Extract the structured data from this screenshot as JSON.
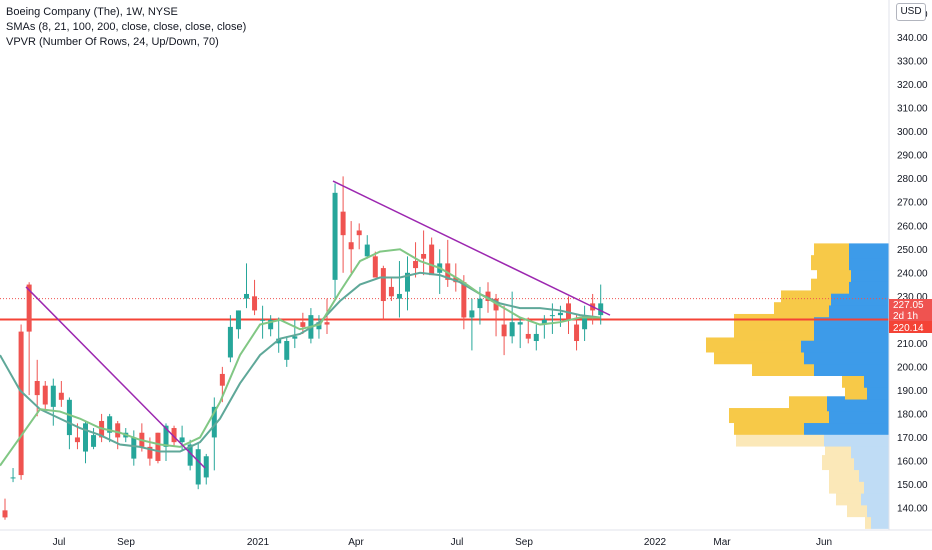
{
  "legend": {
    "title": "Boeing Company (The), 1W, NYSE",
    "sma": "SMAs (8, 21, 100, 200, close, close, close, close)",
    "vpvr": "VPVR (Number Of Rows, 24, Up/Down, 70)"
  },
  "currency": "USD",
  "price_tags": {
    "last": "227.05",
    "countdown": "2d 1h",
    "level": "220.14"
  },
  "colors": {
    "up": "#26a69a",
    "down": "#ef5350",
    "sma_short": "#81c784",
    "sma_mid": "#5fa899",
    "trendline": "#9c27b0",
    "hline": "#f44336",
    "vp_up": "#3d9be9",
    "vp_down": "#f7c948",
    "vp_up_light": "#bfdcf5",
    "vp_down_light": "#fbe8b8"
  },
  "chart_data": {
    "type": "candlestick",
    "y_axis": {
      "ticks": [
        "140.00",
        "150.00",
        "160.00",
        "170.00",
        "180.00",
        "190.00",
        "200.00",
        "210.00",
        "220.00",
        "230.00",
        "240.00",
        "250.00",
        "260.00",
        "270.00",
        "280.00",
        "290.00",
        "300.00",
        "310.00",
        "320.00",
        "330.00",
        "340.00",
        "350.00"
      ],
      "range": [
        132,
        356
      ]
    },
    "x_axis": {
      "ticks": [
        "Jul",
        "Sep",
        "2021",
        "Apr",
        "Jul",
        "Sep",
        "2022",
        "Mar",
        "Jun"
      ]
    },
    "candles": [
      [
        139,
        144,
        135,
        136
      ],
      [
        153,
        157,
        151,
        153
      ],
      [
        215,
        218,
        152,
        154
      ],
      [
        235,
        236,
        188,
        215
      ],
      [
        194,
        203,
        179,
        188
      ],
      [
        192,
        194,
        182,
        184
      ],
      [
        183,
        195,
        175,
        192
      ],
      [
        189,
        194,
        183,
        186
      ],
      [
        171,
        187,
        165,
        186
      ],
      [
        170,
        176,
        165,
        168
      ],
      [
        164,
        177,
        159,
        176
      ],
      [
        166,
        174,
        165,
        171
      ],
      [
        177,
        180,
        168,
        170
      ],
      [
        172,
        180,
        168,
        179
      ],
      [
        176,
        177,
        165,
        170
      ],
      [
        170,
        174,
        168,
        172
      ],
      [
        161,
        173,
        158,
        170
      ],
      [
        172,
        176,
        164,
        166
      ],
      [
        166,
        170,
        158,
        161
      ],
      [
        172,
        172,
        159,
        160
      ],
      [
        166,
        176,
        160,
        175
      ],
      [
        174,
        175,
        166,
        168
      ],
      [
        168,
        175,
        164,
        170
      ],
      [
        158,
        169,
        156,
        167
      ],
      [
        150,
        168,
        148,
        165
      ],
      [
        153,
        163,
        150,
        162
      ],
      [
        170,
        187,
        156,
        183
      ],
      [
        197,
        200,
        185,
        192
      ],
      [
        204,
        222,
        202,
        217
      ],
      [
        216,
        224,
        212,
        224
      ],
      [
        229,
        244,
        225,
        231
      ],
      [
        230,
        237,
        222,
        224
      ],
      [
        220,
        226,
        212,
        220
      ],
      [
        216,
        222,
        213,
        220
      ],
      [
        210,
        221,
        206,
        212
      ],
      [
        203,
        213,
        200,
        211
      ],
      [
        212,
        220,
        208,
        213
      ],
      [
        219,
        223,
        214,
        217
      ],
      [
        212,
        225,
        210,
        222
      ],
      [
        216,
        222,
        212,
        219
      ],
      [
        219,
        229,
        214,
        218
      ],
      [
        237,
        278,
        228,
        274
      ],
      [
        266,
        281,
        240,
        256
      ],
      [
        253,
        262,
        240,
        250
      ],
      [
        258,
        261,
        250,
        256
      ],
      [
        247,
        256,
        246,
        252
      ],
      [
        247,
        249,
        238,
        238
      ],
      [
        242,
        243,
        220,
        228
      ],
      [
        234,
        238,
        228,
        230
      ],
      [
        229,
        245,
        221,
        231
      ],
      [
        232,
        247,
        224,
        240
      ],
      [
        245,
        253,
        238,
        242
      ],
      [
        248,
        258,
        239,
        246
      ],
      [
        252,
        255,
        240,
        239
      ],
      [
        240,
        250,
        231,
        244
      ],
      [
        244,
        254,
        234,
        237
      ],
      [
        238,
        244,
        232,
        236
      ],
      [
        236,
        239,
        216,
        221
      ],
      [
        221,
        229,
        207,
        224
      ],
      [
        225,
        234,
        218,
        229
      ],
      [
        232,
        236,
        223,
        228
      ],
      [
        229,
        231,
        213,
        224
      ],
      [
        218,
        226,
        205,
        213
      ],
      [
        213,
        232,
        210,
        219
      ],
      [
        218,
        221,
        208,
        219
      ],
      [
        214,
        221,
        210,
        212
      ],
      [
        211,
        218,
        207,
        214
      ],
      [
        218,
        222,
        212,
        220
      ],
      [
        222,
        227,
        214,
        222
      ],
      [
        222,
        226,
        217,
        223
      ],
      [
        227,
        230,
        214,
        220
      ],
      [
        218,
        222,
        207,
        211
      ],
      [
        216,
        226,
        211,
        222
      ],
      [
        227,
        231,
        218,
        224
      ],
      [
        222,
        235,
        218,
        227
      ]
    ],
    "sma_8": [
      [
        0,
        158
      ],
      [
        20,
        170
      ],
      [
        40,
        182
      ],
      [
        60,
        181
      ],
      [
        80,
        178
      ],
      [
        100,
        174
      ],
      [
        120,
        172
      ],
      [
        140,
        169
      ],
      [
        160,
        167
      ],
      [
        180,
        166
      ],
      [
        200,
        170
      ],
      [
        220,
        185
      ],
      [
        240,
        205
      ],
      [
        260,
        218
      ],
      [
        280,
        220
      ],
      [
        300,
        216
      ],
      [
        320,
        218
      ],
      [
        340,
        232
      ],
      [
        360,
        245
      ],
      [
        380,
        249
      ],
      [
        400,
        250
      ],
      [
        420,
        245
      ],
      [
        440,
        242
      ],
      [
        460,
        237
      ],
      [
        480,
        231
      ],
      [
        500,
        226
      ],
      [
        520,
        221
      ],
      [
        540,
        218
      ],
      [
        560,
        219
      ],
      [
        580,
        221
      ],
      [
        600,
        221
      ]
    ],
    "sma_21": [
      [
        0,
        205
      ],
      [
        20,
        190
      ],
      [
        40,
        182
      ],
      [
        60,
        178
      ],
      [
        80,
        174
      ],
      [
        100,
        171
      ],
      [
        120,
        167
      ],
      [
        140,
        166
      ],
      [
        160,
        164
      ],
      [
        180,
        164
      ],
      [
        200,
        168
      ],
      [
        220,
        178
      ],
      [
        240,
        193
      ],
      [
        260,
        205
      ],
      [
        280,
        212
      ],
      [
        300,
        214
      ],
      [
        320,
        219
      ],
      [
        340,
        228
      ],
      [
        360,
        235
      ],
      [
        380,
        238
      ],
      [
        400,
        238
      ],
      [
        420,
        240
      ],
      [
        440,
        239
      ],
      [
        460,
        236
      ],
      [
        480,
        231
      ],
      [
        500,
        227
      ],
      [
        520,
        225
      ],
      [
        540,
        225
      ],
      [
        560,
        224
      ],
      [
        580,
        222
      ],
      [
        600,
        221
      ]
    ],
    "trendlines": [
      {
        "from": [
          26,
          234
        ],
        "to": [
          205,
          157
        ]
      },
      {
        "from": [
          333,
          279
        ],
        "to": [
          610,
          222
        ]
      }
    ],
    "horizontal_level": 220.14,
    "volume_profile": [
      {
        "price": 135,
        "up": 18,
        "down": 6,
        "faded": true
      },
      {
        "price": 140,
        "up": 22,
        "down": 20,
        "faded": true
      },
      {
        "price": 145,
        "up": 28,
        "down": 25,
        "faded": true
      },
      {
        "price": 150,
        "up": 25,
        "down": 35,
        "faded": true
      },
      {
        "price": 155,
        "up": 30,
        "down": 30,
        "faded": true
      },
      {
        "price": 160,
        "up": 35,
        "down": 32,
        "faded": true
      },
      {
        "price": 165,
        "up": 38,
        "down": 26,
        "faded": true
      },
      {
        "price": 170,
        "up": 65,
        "down": 88,
        "faded": true
      },
      {
        "price": 175,
        "up": 85,
        "down": 70,
        "faded": false
      },
      {
        "price": 180,
        "up": 60,
        "down": 100,
        "faded": false
      },
      {
        "price": 185,
        "up": 62,
        "down": 38,
        "faded": false
      },
      {
        "price": 190,
        "up": 22,
        "down": 22,
        "faded": false
      },
      {
        "price": 195,
        "up": 25,
        "down": 22,
        "faded": false
      },
      {
        "price": 200,
        "up": 75,
        "down": 62,
        "faded": false
      },
      {
        "price": 205,
        "up": 85,
        "down": 90,
        "faded": false
      },
      {
        "price": 210,
        "up": 88,
        "down": 95,
        "faded": false
      },
      {
        "price": 215,
        "up": 75,
        "down": 80,
        "faded": false
      },
      {
        "price": 220,
        "up": 75,
        "down": 80,
        "faded": false
      },
      {
        "price": 225,
        "up": 60,
        "down": 55,
        "faded": false
      },
      {
        "price": 230,
        "up": 58,
        "down": 50,
        "faded": false
      },
      {
        "price": 235,
        "up": 40,
        "down": 38,
        "faded": false
      },
      {
        "price": 240,
        "up": 38,
        "down": 34,
        "faded": false
      },
      {
        "price": 245,
        "up": 40,
        "down": 38,
        "faded": false
      },
      {
        "price": 250,
        "up": 40,
        "down": 35,
        "faded": false
      }
    ]
  }
}
